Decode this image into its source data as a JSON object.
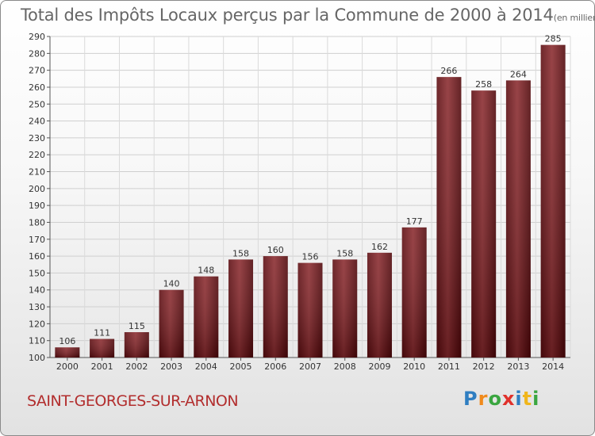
{
  "header": {
    "title": "Total des Impôts Locaux perçus par la Commune de 2000 à 2014",
    "unit": "(en milliers d'€)"
  },
  "footer": {
    "commune": "SAINT-GEORGES-SUR-ARNON",
    "logo": "Proxiti",
    "logo_letters": [
      {
        "ch": "P",
        "color": "#2f7ec1"
      },
      {
        "ch": "r",
        "color": "#f08a1c"
      },
      {
        "ch": "o",
        "color": "#3aa640"
      },
      {
        "ch": "x",
        "color": "#e0312b"
      },
      {
        "ch": "i",
        "color": "#2f7ec1"
      },
      {
        "ch": "t",
        "color": "#f0b61c"
      },
      {
        "ch": "i",
        "color": "#3aa640"
      }
    ]
  },
  "chart_data": {
    "type": "bar",
    "title": "Total des Impôts Locaux perçus par la Commune de 2000 à 2014",
    "ylabel": "(en milliers d'€)",
    "xlabel": "",
    "categories": [
      "2000",
      "2001",
      "2002",
      "2003",
      "2004",
      "2005",
      "2006",
      "2007",
      "2008",
      "2009",
      "2010",
      "2011",
      "2012",
      "2013",
      "2014"
    ],
    "values": [
      106,
      111,
      115,
      140,
      148,
      158,
      160,
      156,
      158,
      162,
      177,
      266,
      258,
      264,
      285
    ],
    "ylim": [
      100,
      290
    ],
    "yticks": [
      100,
      110,
      120,
      130,
      140,
      150,
      160,
      170,
      180,
      190,
      200,
      210,
      220,
      230,
      240,
      250,
      260,
      270,
      280,
      290
    ],
    "grid": true,
    "bar_color": "#6e1015"
  }
}
